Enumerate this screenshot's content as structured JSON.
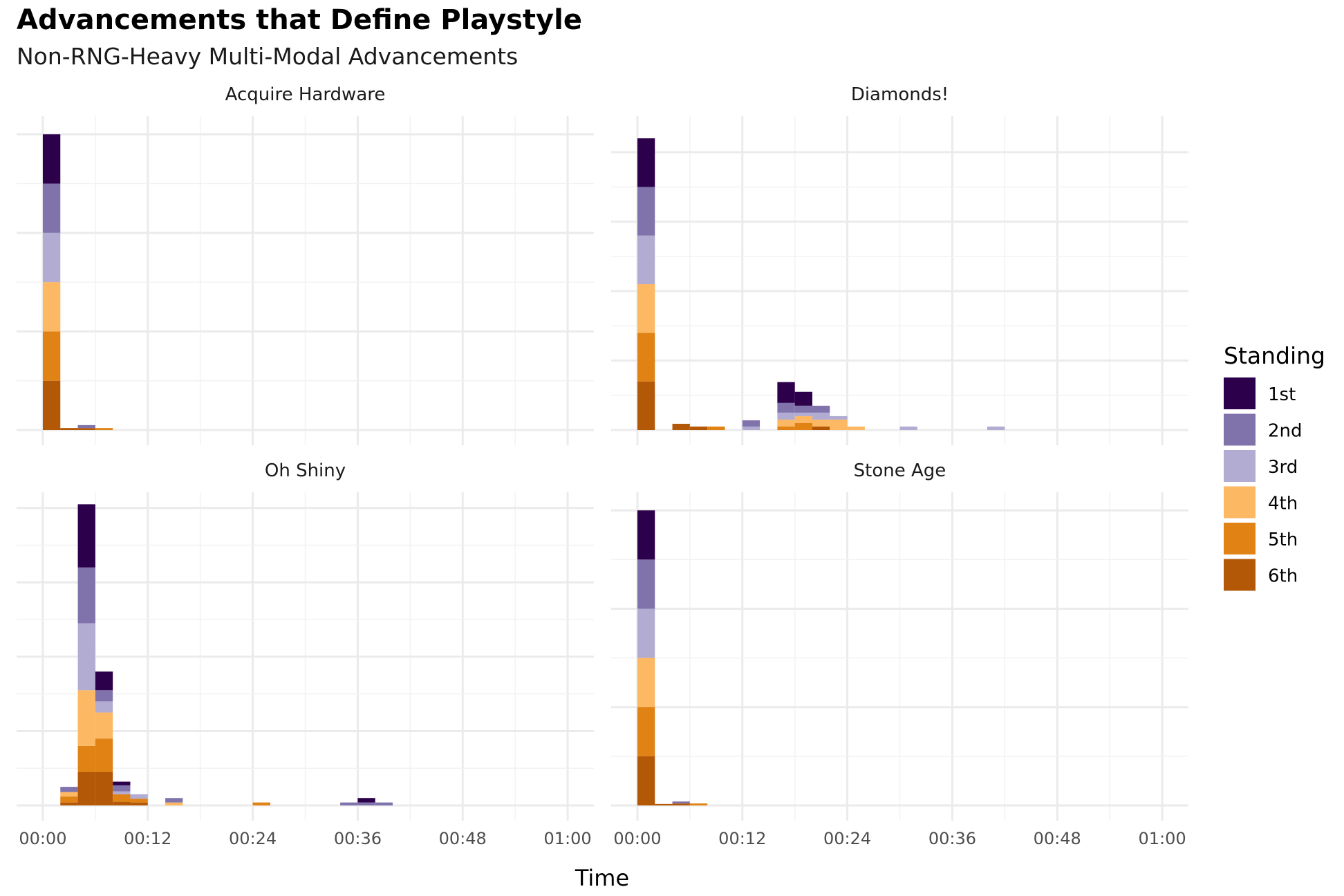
{
  "title": "Advancements that Define Playstyle",
  "subtitle": "Non-RNG-Heavy Multi-Modal Advancements",
  "chart_data": {
    "type": "bar",
    "stacked": true,
    "xlabel": "Time",
    "ylabel": "",
    "x_ticks": [
      "00:00",
      "00:12",
      "00:24",
      "00:36",
      "00:48",
      "01:00"
    ],
    "x_range_minutes": [
      -3,
      63
    ],
    "bin_width_minutes": 2,
    "grid": true,
    "legend": {
      "title": "Standing",
      "position": "right",
      "entries": [
        {
          "name": "1st",
          "color": "#2d004b"
        },
        {
          "name": "2nd",
          "color": "#8073ac"
        },
        {
          "name": "3rd",
          "color": "#b2abd2"
        },
        {
          "name": "4th",
          "color": "#fdb863"
        },
        {
          "name": "5th",
          "color": "#e08214"
        },
        {
          "name": "6th",
          "color": "#b35806"
        }
      ]
    },
    "panels": [
      {
        "name": "Acquire Hardware",
        "y_max": 6.2,
        "y_grid": [
          2,
          4,
          6
        ],
        "bins": [
          {
            "x": 0,
            "counts": [
              1,
              1,
              1,
              1,
              1,
              1
            ]
          },
          {
            "x": 2,
            "counts": [
              0,
              0,
              0,
              0,
              0,
              0.04
            ]
          },
          {
            "x": 4,
            "counts": [
              0,
              0.06,
              0,
              0,
              0,
              0.04
            ]
          },
          {
            "x": 6,
            "counts": [
              0,
              0,
              0,
              0,
              0.04,
              0
            ]
          }
        ]
      },
      {
        "name": "Diamonds!",
        "y_max": 4.4,
        "y_grid": [
          1,
          2,
          3,
          4
        ],
        "bins": [
          {
            "x": 0,
            "counts": [
              0.7,
              0.7,
              0.7,
              0.7,
              0.7,
              0.7
            ]
          },
          {
            "x": 4,
            "counts": [
              0,
              0,
              0,
              0,
              0,
              0.09
            ]
          },
          {
            "x": 6,
            "counts": [
              0,
              0,
              0,
              0,
              0,
              0.05
            ]
          },
          {
            "x": 8,
            "counts": [
              0,
              0,
              0,
              0,
              0.05,
              0
            ]
          },
          {
            "x": 12,
            "counts": [
              0,
              0.09,
              0.05,
              0,
              0,
              0
            ]
          },
          {
            "x": 16,
            "counts": [
              0.3,
              0.14,
              0.1,
              0.1,
              0.05,
              0
            ]
          },
          {
            "x": 18,
            "counts": [
              0.2,
              0.1,
              0.05,
              0.1,
              0.1,
              0
            ]
          },
          {
            "x": 20,
            "counts": [
              0,
              0.1,
              0.1,
              0.1,
              0,
              0.05
            ]
          },
          {
            "x": 22,
            "counts": [
              0,
              0,
              0.05,
              0.15,
              0,
              0
            ]
          },
          {
            "x": 24,
            "counts": [
              0,
              0,
              0,
              0.05,
              0,
              0
            ]
          },
          {
            "x": 30,
            "counts": [
              0,
              0,
              0.05,
              0,
              0,
              0
            ]
          },
          {
            "x": 40,
            "counts": [
              0,
              0,
              0.05,
              0,
              0,
              0
            ]
          }
        ]
      },
      {
        "name": "Oh Shiny",
        "y_max": 4.1,
        "y_grid": [
          1,
          2,
          3,
          4
        ],
        "bins": [
          {
            "x": 2,
            "counts": [
              0,
              0.07,
              0,
              0.06,
              0.08,
              0.04
            ]
          },
          {
            "x": 4,
            "counts": [
              0.85,
              0.75,
              0.9,
              0.75,
              0.35,
              0.45
            ]
          },
          {
            "x": 6,
            "counts": [
              0.25,
              0.15,
              0.15,
              0.35,
              0.45,
              0.45
            ]
          },
          {
            "x": 8,
            "counts": [
              0.05,
              0.08,
              0.04,
              0,
              0.1,
              0.05
            ]
          },
          {
            "x": 10,
            "counts": [
              0,
              0,
              0.06,
              0,
              0.05,
              0.04
            ]
          },
          {
            "x": 14,
            "counts": [
              0,
              0.06,
              0,
              0.04,
              0,
              0
            ]
          },
          {
            "x": 24,
            "counts": [
              0,
              0,
              0,
              0,
              0.04,
              0
            ]
          },
          {
            "x": 34,
            "counts": [
              0,
              0.04,
              0,
              0,
              0,
              0
            ]
          },
          {
            "x": 36,
            "counts": [
              0.06,
              0.04,
              0,
              0,
              0,
              0
            ]
          },
          {
            "x": 38,
            "counts": [
              0,
              0.04,
              0,
              0,
              0,
              0
            ]
          }
        ]
      },
      {
        "name": "Stone Age",
        "y_max": 6.2,
        "y_grid": [
          2,
          4,
          6
        ],
        "bins": [
          {
            "x": 0,
            "counts": [
              1,
              1,
              1,
              1,
              1,
              1
            ]
          },
          {
            "x": 2,
            "counts": [
              0,
              0,
              0,
              0,
              0,
              0.03
            ]
          },
          {
            "x": 4,
            "counts": [
              0,
              0.04,
              0,
              0,
              0,
              0.04
            ]
          },
          {
            "x": 6,
            "counts": [
              0,
              0,
              0,
              0,
              0.04,
              0
            ]
          }
        ]
      }
    ]
  }
}
